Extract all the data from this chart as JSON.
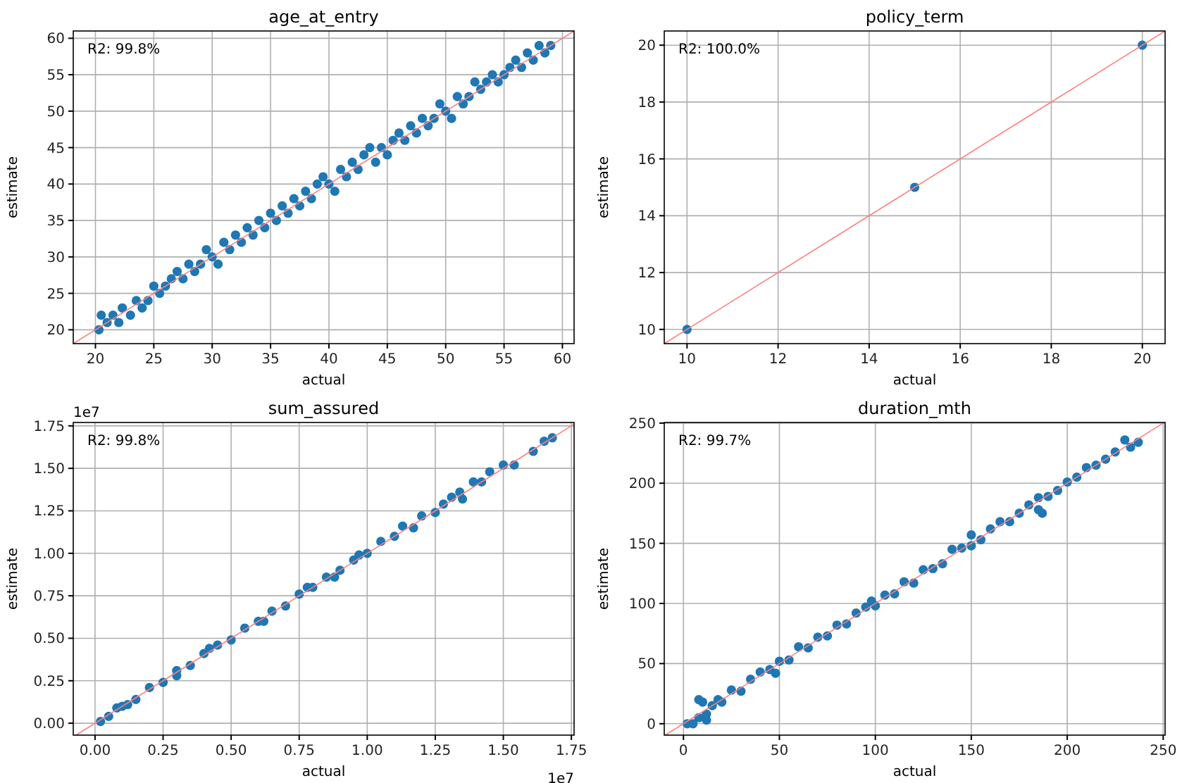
{
  "chart_data": [
    {
      "type": "scatter",
      "title": "age_at_entry",
      "xlabel": "actual",
      "ylabel": "estimate",
      "xlim": [
        18.1,
        61
      ],
      "ylim": [
        18.1,
        61
      ],
      "xticks": [
        20,
        25,
        30,
        35,
        40,
        45,
        50,
        55,
        60
      ],
      "yticks": [
        20,
        25,
        30,
        35,
        40,
        45,
        50,
        55,
        60
      ],
      "grid": true,
      "marker": "circle",
      "annotations": [
        "R2: 99.8%"
      ],
      "series": [
        {
          "color": "#1f77b4",
          "x": [
            20.3,
            20.5,
            21,
            21.5,
            22,
            22.3,
            23,
            23.5,
            24,
            24.5,
            25,
            25.5,
            26,
            26.5,
            27,
            27.5,
            28,
            28.5,
            29,
            29.5,
            30,
            30.5,
            31,
            31.5,
            32,
            32.5,
            33,
            33.5,
            34,
            34.5,
            35,
            35.5,
            36,
            36.5,
            37,
            37.5,
            38,
            38.5,
            39,
            39.5,
            40,
            40.5,
            41,
            41.5,
            42,
            42.5,
            43,
            43.5,
            44,
            44.5,
            45,
            45.5,
            46,
            46.5,
            47,
            47.5,
            48,
            48.5,
            49,
            49.5,
            50,
            50.5,
            51,
            51.5,
            52,
            52.5,
            53,
            53.5,
            54,
            54.5,
            55,
            55.5,
            56,
            56.5,
            57,
            57.5,
            58,
            58.5,
            59
          ],
          "values": [
            20,
            22,
            21,
            22,
            21,
            23,
            22,
            24,
            23,
            24,
            26,
            25,
            26,
            27,
            28,
            27,
            29,
            28,
            29,
            31,
            30,
            29,
            32,
            31,
            33,
            32,
            34,
            33,
            35,
            34,
            36,
            35,
            37,
            36,
            38,
            37,
            39,
            38,
            40,
            41,
            40,
            39,
            42,
            41,
            43,
            42,
            44,
            45,
            43,
            45,
            44,
            46,
            47,
            46,
            48,
            47,
            49,
            48,
            49,
            51,
            50,
            49,
            52,
            51,
            52,
            54,
            53,
            54,
            55,
            54,
            55,
            56,
            57,
            56,
            58,
            57,
            59,
            58,
            59
          ]
        },
        {
          "type": "line",
          "marker": "none",
          "color": "#ff7f7f",
          "x": [
            18.1,
            61
          ],
          "values": [
            18.1,
            61
          ]
        }
      ]
    },
    {
      "type": "scatter",
      "title": "policy_term",
      "xlabel": "actual",
      "ylabel": "estimate",
      "xlim": [
        9.5,
        20.5
      ],
      "ylim": [
        9.5,
        20.5
      ],
      "xticks": [
        10,
        12,
        14,
        16,
        18,
        20
      ],
      "yticks": [
        10,
        12,
        14,
        16,
        18,
        20
      ],
      "grid": true,
      "marker": "circle",
      "annotations": [
        "R2: 100.0%"
      ],
      "series": [
        {
          "color": "#1f77b4",
          "x": [
            10,
            15,
            20
          ],
          "values": [
            10,
            15,
            20
          ]
        },
        {
          "type": "line",
          "marker": "none",
          "color": "#ff7f7f",
          "x": [
            9.5,
            20.5
          ],
          "values": [
            9.5,
            20.5
          ]
        }
      ]
    },
    {
      "type": "scatter",
      "title": "sum_assured",
      "xlabel": "actual",
      "ylabel": "estimate",
      "xlim": [
        -0.08,
        1.76
      ],
      "ylim": [
        -0.07,
        1.77
      ],
      "xticks": [
        {
          "value": 0,
          "label": "0.00"
        },
        {
          "value": 0.25,
          "label": "0.25"
        },
        {
          "value": 0.5,
          "label": "0.50"
        },
        {
          "value": 0.75,
          "label": "0.75"
        },
        {
          "value": 1,
          "label": "1.00"
        },
        {
          "value": 1.25,
          "label": "1.25"
        },
        {
          "value": 1.5,
          "label": "1.50"
        },
        {
          "value": 1.75,
          "label": "1.75"
        }
      ],
      "yticks": [
        {
          "value": 0,
          "label": "0.00"
        },
        {
          "value": 0.25,
          "label": "0.25"
        },
        {
          "value": 0.5,
          "label": "0.50"
        },
        {
          "value": 0.75,
          "label": "0.75"
        },
        {
          "value": 1,
          "label": "1.00"
        },
        {
          "value": 1.25,
          "label": "1.25"
        },
        {
          "value": 1.5,
          "label": "1.50"
        },
        {
          "value": 1.75,
          "label": "1.75"
        }
      ],
      "grid": true,
      "marker": "circle",
      "annotations": [
        "R2: 99.8%",
        "1e7",
        "1e7"
      ],
      "series": [
        {
          "color": "#1f77b4",
          "x": [
            0.02,
            0.05,
            0.08,
            0.1,
            0.12,
            0.15,
            0.2,
            0.25,
            0.3,
            0.3,
            0.35,
            0.4,
            0.42,
            0.45,
            0.5,
            0.55,
            0.6,
            0.62,
            0.65,
            0.7,
            0.75,
            0.78,
            0.8,
            0.85,
            0.88,
            0.9,
            0.95,
            0.97,
            1.0,
            1.05,
            1.1,
            1.13,
            1.17,
            1.2,
            1.25,
            1.28,
            1.31,
            1.34,
            1.35,
            1.39,
            1.42,
            1.45,
            1.5,
            1.54,
            1.61,
            1.65,
            1.68
          ],
          "values": [
            0.01,
            0.04,
            0.09,
            0.1,
            0.11,
            0.14,
            0.21,
            0.24,
            0.31,
            0.28,
            0.34,
            0.41,
            0.44,
            0.46,
            0.49,
            0.56,
            0.6,
            0.6,
            0.66,
            0.69,
            0.76,
            0.8,
            0.8,
            0.86,
            0.86,
            0.9,
            0.96,
            0.99,
            1.0,
            1.07,
            1.1,
            1.16,
            1.15,
            1.22,
            1.24,
            1.29,
            1.33,
            1.36,
            1.32,
            1.42,
            1.42,
            1.48,
            1.52,
            1.52,
            1.6,
            1.66,
            1.68
          ]
        },
        {
          "type": "line",
          "marker": "none",
          "color": "#ff7f7f",
          "x": [
            -0.07,
            1.76
          ],
          "values": [
            -0.07,
            1.76
          ]
        }
      ]
    },
    {
      "type": "scatter",
      "title": "duration_mth",
      "xlabel": "actual",
      "ylabel": "estimate",
      "xlim": [
        -10,
        251
      ],
      "ylim": [
        -9.5,
        250.5
      ],
      "xticks": [
        0,
        50,
        100,
        150,
        200,
        250
      ],
      "yticks": [
        0,
        50,
        100,
        150,
        200,
        250
      ],
      "grid": true,
      "marker": "circle",
      "annotations": [
        "R2: 99.7%"
      ],
      "series": [
        {
          "color": "#1f77b4",
          "x": [
            2,
            5,
            8,
            8,
            10,
            12,
            12,
            15,
            18,
            20,
            25,
            30,
            35,
            40,
            45,
            48,
            50,
            55,
            60,
            65,
            70,
            75,
            80,
            85,
            90,
            95,
            98,
            100,
            105,
            110,
            115,
            120,
            125,
            130,
            135,
            140,
            145,
            150,
            150,
            155,
            160,
            165,
            170,
            175,
            180,
            185,
            185,
            187,
            190,
            195,
            200,
            205,
            210,
            215,
            220,
            225,
            230,
            233,
            237
          ],
          "values": [
            0,
            0,
            5,
            20,
            18,
            8,
            3,
            15,
            20,
            18,
            28,
            27,
            37,
            43,
            45,
            42,
            52,
            53,
            64,
            63,
            72,
            73,
            82,
            83,
            92,
            97,
            102,
            98,
            107,
            108,
            118,
            117,
            128,
            129,
            133,
            145,
            146,
            157,
            148,
            153,
            162,
            168,
            168,
            175,
            182,
            188,
            178,
            175,
            189,
            194,
            201,
            205,
            213,
            215,
            220,
            226,
            236,
            230,
            234
          ]
        },
        {
          "type": "line",
          "marker": "none",
          "color": "#ff7f7f",
          "x": [
            -9.5,
            250
          ],
          "values": [
            -9.5,
            250
          ]
        }
      ]
    }
  ]
}
